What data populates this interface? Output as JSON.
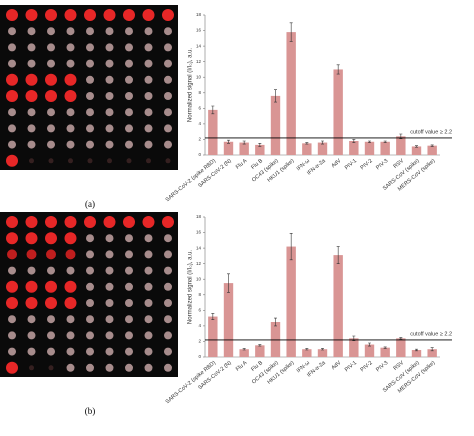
{
  "chart_data": [
    {
      "type": "bar",
      "panel_label": "(a)",
      "ylabel": "Normalized signal (I/I₀), a.u.",
      "categories": [
        "SARS-CoV-2 (spike RBD)",
        "SARS-CoV-2 (N)",
        "Flu A",
        "Flu B",
        "OC43 (spike)",
        "HKU1 (spike)",
        "IFN-ω",
        "IFN-α-2a",
        "AdV",
        "PIV-1",
        "PIV-2",
        "PIV-3",
        "RSV",
        "SARS-CoV (spike)",
        "MERS-CoV (spike)"
      ],
      "values": [
        5.8,
        1.7,
        1.6,
        1.3,
        7.6,
        15.8,
        1.5,
        1.6,
        11.0,
        1.8,
        1.7,
        1.7,
        2.4,
        1.1,
        1.2
      ],
      "errors": [
        0.5,
        0.2,
        0.2,
        0.2,
        0.8,
        1.2,
        0.1,
        0.2,
        0.6,
        0.2,
        0.1,
        0.1,
        0.3,
        0.1,
        0.1
      ],
      "color": "#d99594",
      "ylim": [
        0,
        18
      ],
      "yticks": [
        0,
        2,
        4,
        6,
        8,
        10,
        12,
        14,
        16,
        18
      ],
      "cutoff": 2.2,
      "cutoff_label": "cutoff value ≥ 2.2"
    },
    {
      "type": "bar",
      "panel_label": "(b)",
      "ylabel": "Normalized signal (I/I₀), a.u.",
      "categories": [
        "SARS-CoV-2 (spike RBD)",
        "SARS-CoV-2 (N)",
        "Flu A",
        "Flu B",
        "OC43 (spike)",
        "HKU1 (spike)",
        "IFN-ω",
        "IFN-α-2a",
        "AdV",
        "PIV-1",
        "PIV-2",
        "PIV-3",
        "RSV",
        "SARS-CoV (spike)",
        "MERS-CoV (spike)"
      ],
      "values": [
        5.2,
        9.5,
        1.0,
        1.5,
        4.5,
        14.2,
        1.0,
        1.0,
        13.1,
        2.4,
        1.6,
        1.2,
        2.4,
        0.9,
        1.0
      ],
      "errors": [
        0.4,
        1.2,
        0.1,
        0.1,
        0.5,
        1.7,
        0.1,
        0.1,
        1.1,
        0.3,
        0.2,
        0.1,
        0.1,
        0.1,
        0.2
      ],
      "color": "#d99594",
      "ylim": [
        0,
        18
      ],
      "yticks": [
        0,
        2,
        4,
        6,
        8,
        10,
        12,
        14,
        16,
        18
      ],
      "cutoff": 2.2,
      "cutoff_label": "cutoff value ≥ 2.2"
    }
  ]
}
